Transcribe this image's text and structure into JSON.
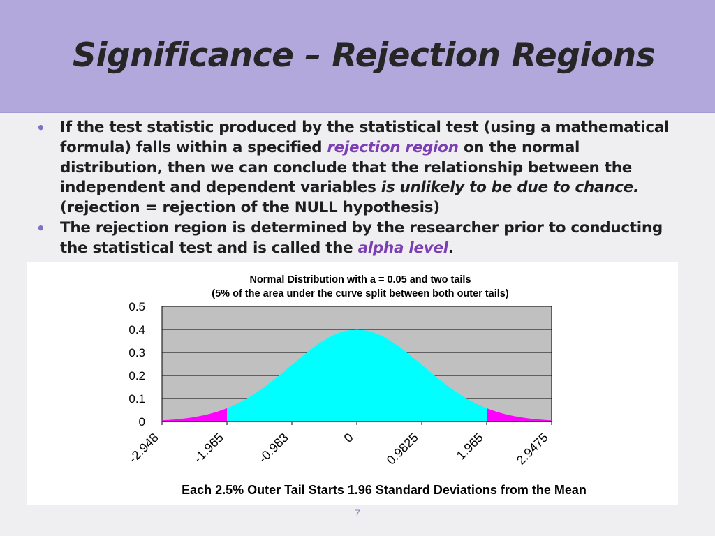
{
  "slide": {
    "title": "Significance – Rejection Regions",
    "page_number": "7",
    "bullet1": {
      "p1": "If the test statistic produced by the statistical test (using a mathematical formula)  falls within a specified ",
      "hl1": "rejection region",
      "p2": " on the normal distribution, then we can conclude that the relationship between the independent and dependent variables ",
      "it1": "is unlikely to be due to chance.",
      "p3": " (rejection = rejection of the NULL hypothesis)"
    },
    "bullet2": {
      "p1": "The rejection region is determined by the researcher prior to conducting the statistical test and is called the ",
      "hl1": "alpha level",
      "p2": "."
    }
  },
  "colors": {
    "banner": "#b2a8dc",
    "highlight": "#7b3fb3",
    "curve_fill": "#00ffff",
    "tail_fill": "#ff00ff",
    "plot_background": "#c0c0c0"
  },
  "chart_data": {
    "type": "area",
    "title": "Normal Distribution with a = 0.05 and two tails",
    "subtitle": "(5% of the area under the curve split between both outer tails)",
    "xlabel": "Each 2.5% Outer Tail Starts 1.96 Standard Deviations from the Mean",
    "ylabel": "",
    "ylim": [
      0,
      0.5
    ],
    "y_ticks": [
      "0.5",
      "0.4",
      "0.3",
      "0.2",
      "0.1",
      "0"
    ],
    "x_tick_labels": [
      "-2.948",
      "-1.965",
      "-0.983",
      "0",
      "0.9825",
      "1.965",
      "2.9475"
    ],
    "x": [
      -2.948,
      -1.965,
      -0.983,
      0,
      0.9825,
      1.965,
      2.9475
    ],
    "y": [
      0.005,
      0.058,
      0.246,
      0.399,
      0.247,
      0.058,
      0.005
    ],
    "series": [
      {
        "name": "",
        "region": "center",
        "x_range": [
          -1.965,
          1.965
        ],
        "color": "#00ffff"
      },
      {
        "name": "",
        "region": "left tail",
        "x_range": [
          -2.948,
          -1.965
        ],
        "color": "#ff00ff"
      },
      {
        "name": "",
        "region": "right tail",
        "x_range": [
          1.965,
          2.9475
        ],
        "color": "#ff00ff"
      }
    ],
    "grid": true,
    "legend": "none"
  }
}
